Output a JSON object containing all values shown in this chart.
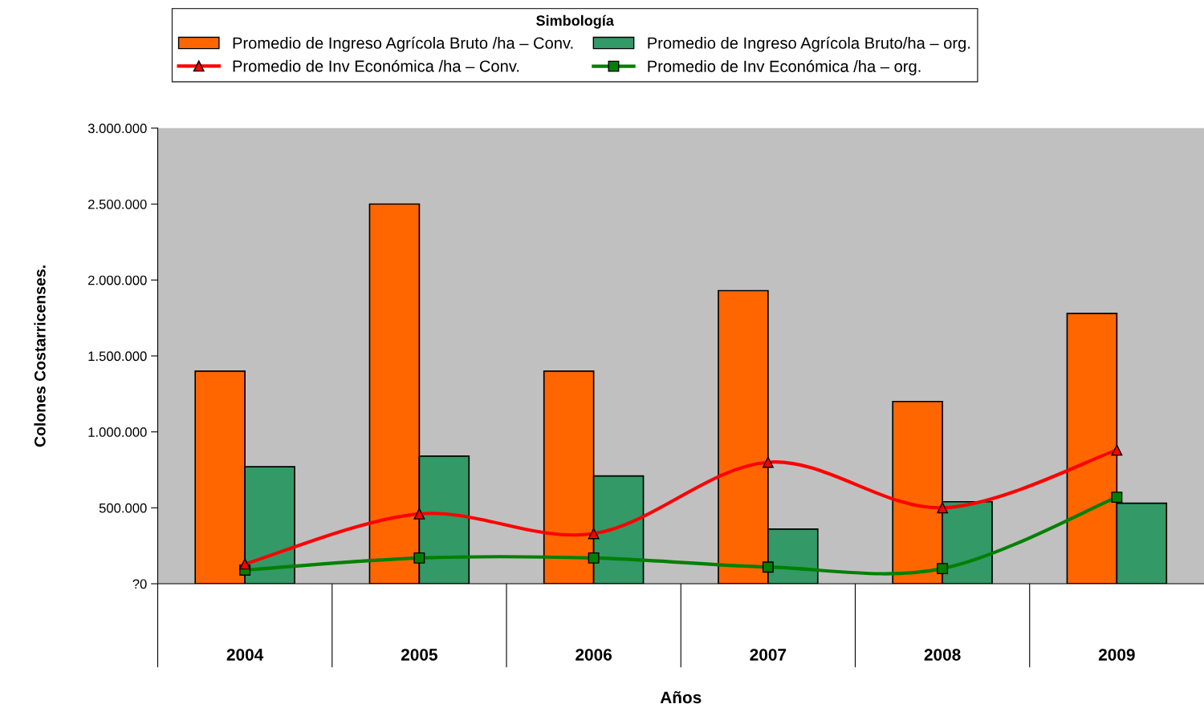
{
  "chart_data": {
    "type": "bar",
    "xlabel": "Años",
    "ylabel": "Colones Costarricenses.",
    "legend_title": "Simbología",
    "categories": [
      "2004",
      "2005",
      "2006",
      "2007",
      "2008",
      "2009"
    ],
    "series": [
      {
        "name": "Promedio de Ingreso Agrícola Bruto /ha – Conv.",
        "color": "#ff6600",
        "values": [
          1400000,
          2500000,
          1400000,
          1930000,
          1200000,
          1780000
        ]
      },
      {
        "name": "Promedio de Ingreso Agrícola Bruto/ha – org.",
        "color": "#339966",
        "values": [
          770000,
          840000,
          710000,
          360000,
          540000,
          530000
        ]
      },
      {
        "name": "Promedio de Inv Económica /ha – Conv.",
        "type": "line",
        "marker": "triangle",
        "color": "#ff0000",
        "values": [
          130000,
          460000,
          330000,
          800000,
          500000,
          880000
        ]
      },
      {
        "name": "Promedio de Inv Económica /ha – org.",
        "type": "line",
        "marker": "square",
        "color": "#008000",
        "values": [
          90000,
          170000,
          170000,
          110000,
          100000,
          570000
        ]
      }
    ],
    "ylim": [
      0,
      3000000
    ],
    "yticks": [
      {
        "value": 0,
        "label": "?0"
      },
      {
        "value": 500000,
        "label": "500.000"
      },
      {
        "value": 1000000,
        "label": "1.000.000"
      },
      {
        "value": 1500000,
        "label": "1.500.000"
      },
      {
        "value": 2000000,
        "label": "2.000.000"
      },
      {
        "value": 2500000,
        "label": "2.500.000"
      },
      {
        "value": 3000000,
        "label": "3.000.000"
      }
    ],
    "grid": false,
    "legend": "top"
  }
}
